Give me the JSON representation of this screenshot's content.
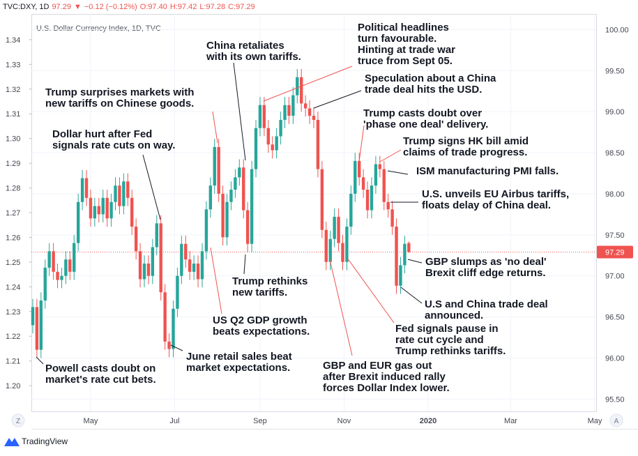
{
  "chart_data": {
    "type": "candlestick",
    "title": "U.S. Dollar Currency Index, 1D, TVC",
    "header": [
      {
        "text": "TVC:DXY, 1D",
        "color": "#131722"
      },
      {
        "text": "97.29",
        "color": "#ef5350"
      },
      {
        "text": "▼",
        "color": "#ef5350"
      },
      {
        "text": "−0.12 (−0.12%)",
        "color": "#ef5350"
      },
      {
        "text": "O:97.40",
        "color": "#ef5350"
      },
      {
        "text": "H:97.42",
        "color": "#ef5350"
      },
      {
        "text": "L:97.28",
        "color": "#ef5350"
      },
      {
        "text": "C:97.29",
        "color": "#ef5350"
      }
    ],
    "up_color": "#26a69a",
    "down_color": "#ef5350",
    "grid": true,
    "xlim": [
      77,
      487
    ],
    "xticks": [
      {
        "value": 120,
        "label": "May"
      },
      {
        "value": 181,
        "label": "Jul"
      },
      {
        "value": 243,
        "label": "Sep"
      },
      {
        "value": 304,
        "label": "Nov"
      },
      {
        "value": 365,
        "label": "2020"
      },
      {
        "value": 425,
        "label": "Mar"
      },
      {
        "value": 486,
        "label": "May"
      }
    ],
    "ylim": [
      1.1896,
      1.3504
    ],
    "yticks": [
      {
        "value": 1.2,
        "label": "1.20"
      },
      1.21,
      1.22,
      1.23,
      1.24,
      1.25,
      1.26,
      1.27,
      1.28,
      1.29,
      {
        "value": 1.3,
        "label": "1.30"
      },
      1.31,
      1.32,
      1.33,
      1.34
    ],
    "y2lim": [
      95.35,
      100.19
    ],
    "y2ticks": [
      {
        "value": 95.5,
        "label": "95.50"
      },
      {
        "value": 96,
        "label": "96.00"
      },
      {
        "value": 96.5,
        "label": "96.50"
      },
      {
        "value": 97,
        "label": "97.00"
      },
      {
        "value": 97.5,
        "label": "97.50"
      },
      {
        "value": 98,
        "label": "98.00"
      },
      {
        "value": 98.5,
        "label": "98.50"
      },
      {
        "value": 99,
        "label": "99.00"
      },
      {
        "value": 99.5,
        "label": "99.50"
      },
      {
        "value": 100,
        "label": "100.00"
      }
    ],
    "last_price": 97.29,
    "series": [
      {
        "axis": "y2",
        "x": [
          78,
          81,
          84,
          87,
          90,
          93,
          96,
          99,
          102,
          105,
          108,
          111,
          114,
          117,
          120,
          123,
          126,
          129,
          132,
          135,
          138,
          141,
          144,
          147,
          150,
          153,
          156,
          159,
          162,
          165,
          168,
          171,
          174,
          177,
          180,
          183,
          186,
          189,
          192,
          195,
          198,
          201,
          204,
          207,
          210,
          213,
          216,
          219,
          222,
          225,
          228,
          231,
          234,
          237,
          240,
          243,
          246,
          249,
          252,
          255,
          258,
          261,
          264,
          267,
          270,
          273,
          276,
          279,
          282,
          285,
          288,
          291,
          294,
          297,
          300,
          303,
          306,
          309,
          312,
          315,
          318,
          321,
          324,
          327,
          330,
          333,
          336,
          339,
          342,
          345,
          348,
          351
        ],
        "open": [
          96.4,
          96.62,
          96.1,
          96.7,
          97.1,
          97.3,
          97.05,
          96.95,
          97.0,
          97.2,
          97.05,
          97.4,
          97.9,
          98.19,
          97.95,
          97.7,
          97.85,
          97.75,
          97.95,
          97.7,
          97.9,
          98.1,
          97.85,
          98.15,
          97.95,
          97.6,
          97.3,
          96.96,
          97.15,
          97.0,
          97.35,
          97.64,
          96.8,
          96.2,
          96.11,
          96.6,
          97.0,
          97.39,
          97.2,
          97.05,
          97.15,
          96.96,
          97.3,
          97.81,
          98.1,
          98.57,
          98.0,
          97.47,
          97.9,
          98.05,
          98.2,
          98.32,
          97.8,
          97.39,
          98.3,
          98.8,
          99.08,
          98.8,
          98.6,
          98.53,
          98.7,
          98.9,
          99.08,
          98.95,
          99.2,
          99.42,
          99.1,
          99.04,
          98.95,
          98.9,
          98.3,
          97.56,
          97.17,
          97.45,
          97.72,
          97.4,
          97.17,
          97.6,
          98.0,
          98.4,
          98.2,
          98.05,
          97.8,
          98.1,
          98.36,
          98.3,
          97.9,
          97.81,
          97.6,
          96.88,
          97.13,
          97.4
        ],
        "high": [
          96.72,
          96.72,
          96.8,
          97.2,
          97.4,
          97.4,
          97.15,
          97.1,
          97.3,
          97.3,
          97.5,
          98.0,
          98.29,
          98.29,
          98.05,
          97.95,
          97.95,
          98.05,
          98.05,
          98.0,
          98.2,
          98.2,
          98.25,
          98.25,
          98.05,
          97.7,
          97.4,
          97.25,
          97.25,
          97.45,
          97.74,
          97.74,
          96.9,
          96.3,
          96.7,
          97.1,
          97.49,
          97.49,
          97.3,
          97.25,
          97.25,
          97.4,
          97.91,
          98.2,
          98.67,
          98.67,
          98.1,
          98.0,
          98.15,
          98.3,
          98.42,
          98.42,
          97.9,
          98.4,
          98.9,
          99.18,
          99.18,
          98.9,
          98.7,
          98.8,
          99.0,
          99.18,
          99.18,
          99.3,
          99.52,
          99.52,
          99.2,
          99.14,
          99.05,
          99.0,
          98.4,
          97.66,
          97.55,
          97.82,
          97.82,
          97.5,
          97.7,
          98.1,
          98.5,
          98.5,
          98.3,
          98.15,
          98.2,
          98.46,
          98.46,
          98.4,
          98.0,
          97.91,
          97.7,
          97.23,
          97.49,
          97.42
        ],
        "low": [
          96.3,
          96.0,
          96.0,
          96.6,
          97.0,
          96.95,
          96.85,
          96.85,
          96.9,
          96.95,
          96.95,
          97.3,
          97.8,
          97.85,
          97.6,
          97.6,
          97.65,
          97.65,
          97.6,
          97.6,
          97.8,
          97.75,
          97.75,
          97.85,
          97.5,
          97.2,
          96.86,
          96.86,
          96.9,
          96.9,
          97.25,
          96.7,
          96.1,
          96.01,
          96.01,
          96.5,
          96.9,
          97.1,
          96.95,
          96.95,
          96.86,
          96.86,
          97.2,
          97.71,
          98.0,
          97.9,
          97.37,
          97.37,
          97.8,
          97.95,
          98.1,
          97.7,
          97.29,
          97.29,
          98.2,
          98.7,
          98.7,
          98.5,
          98.43,
          98.43,
          98.6,
          98.8,
          98.85,
          98.85,
          99.1,
          99.0,
          98.94,
          98.85,
          98.8,
          98.2,
          97.46,
          97.07,
          97.07,
          97.35,
          97.3,
          97.07,
          97.07,
          97.5,
          97.9,
          98.1,
          97.95,
          97.7,
          97.7,
          98.0,
          98.2,
          97.8,
          97.71,
          97.5,
          96.78,
          96.78,
          97.03,
          97.28
        ],
        "close": [
          96.62,
          96.1,
          96.7,
          97.1,
          97.3,
          97.05,
          96.95,
          97.0,
          97.2,
          97.05,
          97.4,
          97.9,
          98.19,
          97.95,
          97.7,
          97.85,
          97.75,
          97.95,
          97.7,
          97.9,
          98.1,
          97.85,
          98.15,
          97.95,
          97.6,
          97.3,
          96.96,
          97.15,
          97.0,
          97.35,
          97.64,
          96.8,
          96.2,
          96.11,
          96.6,
          97.0,
          97.39,
          97.2,
          97.05,
          97.15,
          96.96,
          97.3,
          97.81,
          98.1,
          98.57,
          98.0,
          97.47,
          97.9,
          98.05,
          98.2,
          98.32,
          97.8,
          97.39,
          98.3,
          98.8,
          99.08,
          98.8,
          98.6,
          98.53,
          98.7,
          98.9,
          99.08,
          98.95,
          99.2,
          99.42,
          99.1,
          99.04,
          98.95,
          98.9,
          98.3,
          97.56,
          97.17,
          97.45,
          97.72,
          97.4,
          97.17,
          97.6,
          98.0,
          98.4,
          98.2,
          98.05,
          97.8,
          98.1,
          98.36,
          98.3,
          97.9,
          97.81,
          97.6,
          96.88,
          97.13,
          97.39,
          97.29
        ]
      }
    ],
    "annotations": [
      {
        "lines": [
          "Powell casts doubt on",
          "market's rate cut bets."
        ],
        "color": "#131722"
      },
      {
        "lines": [
          "Dollar hurt after Fed",
          "signals rate cuts on way."
        ],
        "color": "#131722"
      },
      {
        "lines": [
          "Trump surprises markets with",
          "new tariffs on Chinese goods."
        ],
        "color": "#ef5350"
      },
      {
        "lines": [
          "China retaliates",
          "with its own tariffs."
        ],
        "color": "#131722"
      },
      {
        "lines": [
          "Political headlines",
          "turn favourable.",
          "Hinting at trade war",
          "truce from Sept 05."
        ],
        "color": "#ef5350"
      },
      {
        "lines": [
          "Speculation about a China",
          "trade deal hits the USD."
        ],
        "color": "#131722"
      },
      {
        "lines": [
          "Trump casts doubt over",
          "'phase one deal' delivery."
        ],
        "color": "#ef5350"
      },
      {
        "lines": [
          "Trump signs HK bill amid",
          "claims of trade progress."
        ],
        "color": "#ef5350"
      },
      {
        "lines": [
          "ISM manufacturing PMI falls."
        ],
        "color": "#131722"
      },
      {
        "lines": [
          "U.S. unveils EU Airbus tariffs,",
          "floats delay of China deal."
        ],
        "color": "#131722"
      },
      {
        "lines": [
          "GBP slumps as 'no deal'",
          "Brexit cliff edge returns."
        ],
        "color": "#131722"
      },
      {
        "lines": [
          "U.S and China trade deal",
          "announced."
        ],
        "color": "#131722"
      },
      {
        "lines": [
          "Fed signals pause in",
          "rate cut cycle and",
          "Trump rethinks tariffs."
        ],
        "color": "#ef5350"
      },
      {
        "lines": [
          "GBP and EUR gas out",
          "after Brexit induced rally",
          "forces Dollar Index lower."
        ],
        "color": "#ef5350"
      },
      {
        "lines": [
          "June retail sales beat",
          "market expectations."
        ],
        "color": "#131722"
      },
      {
        "lines": [
          "US Q2 GDP growth",
          "beats expectations."
        ],
        "color": "#ef5350"
      },
      {
        "lines": [
          "Trump rethinks",
          "new tariffs."
        ],
        "color": "#131722"
      }
    ],
    "buttons": [
      "Z",
      "A"
    ],
    "footer": "TradingView"
  }
}
